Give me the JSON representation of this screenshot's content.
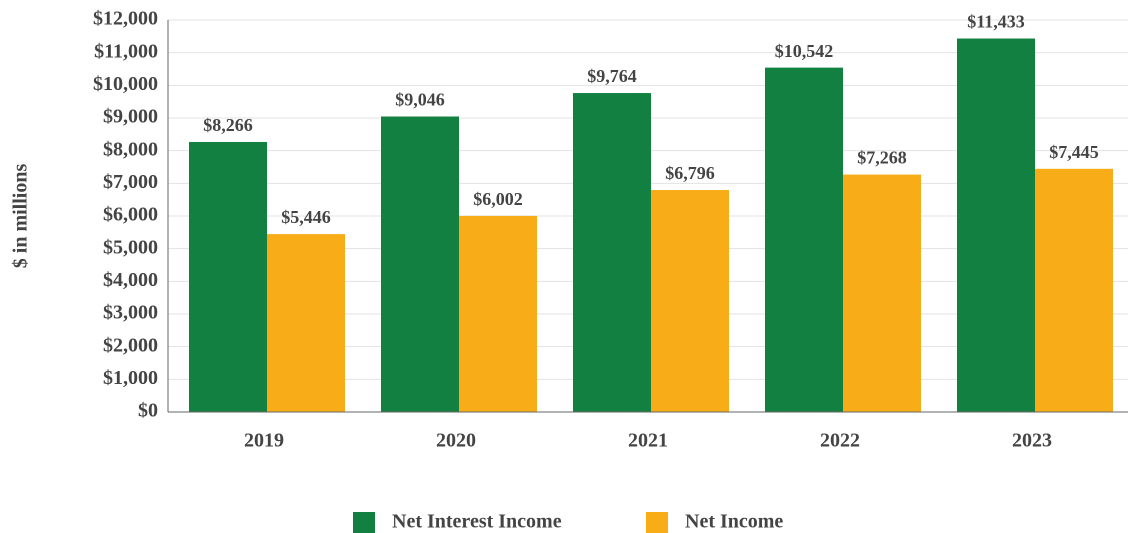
{
  "chart_data": {
    "type": "bar",
    "y_label": "$ in millions",
    "categories": [
      "2019",
      "2020",
      "2021",
      "2022",
      "2023"
    ],
    "series": [
      {
        "name": "Net Interest Income",
        "color": "#118040",
        "values": [
          8266,
          9046,
          9764,
          10542,
          11433
        ],
        "value_labels": [
          "$8,266",
          "$9,046",
          "$9,764",
          "$10,542",
          "$11,433"
        ]
      },
      {
        "name": "Net Income",
        "color": "#f8ac18",
        "values": [
          5446,
          6002,
          6796,
          7268,
          7445
        ],
        "value_labels": [
          "$5,446",
          "$6,002",
          "$6,796",
          "$7,268",
          "$7,445"
        ]
      }
    ],
    "ylim": [
      0,
      12000
    ],
    "yticks": [
      {
        "value": 0,
        "label": "$0"
      },
      {
        "value": 1000,
        "label": "$1,000"
      },
      {
        "value": 2000,
        "label": "$2,000"
      },
      {
        "value": 3000,
        "label": "$3,000"
      },
      {
        "value": 4000,
        "label": "$4,000"
      },
      {
        "value": 5000,
        "label": "$5,000"
      },
      {
        "value": 6000,
        "label": "$6,000"
      },
      {
        "value": 7000,
        "label": "$7,000"
      },
      {
        "value": 8000,
        "label": "$8,000"
      },
      {
        "value": 9000,
        "label": "$9,000"
      },
      {
        "value": 10000,
        "label": "$10,000"
      },
      {
        "value": 11000,
        "label": "$11,000"
      },
      {
        "value": 12000,
        "label": "$12,000"
      }
    ],
    "grid": true,
    "legend": "bottom"
  }
}
